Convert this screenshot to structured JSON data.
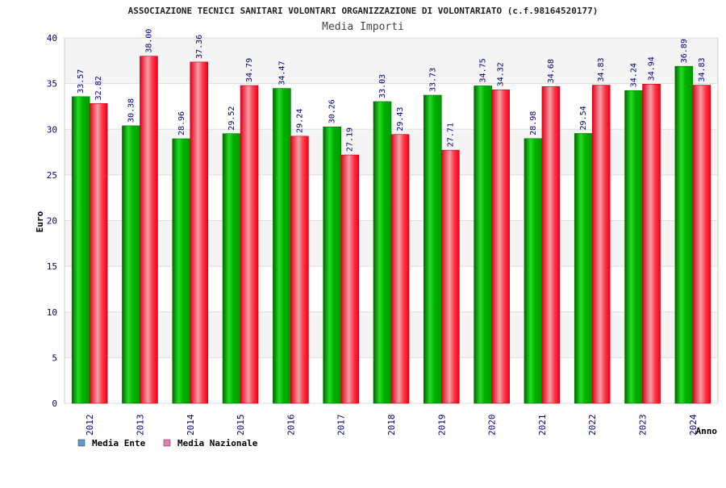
{
  "chart_data": {
    "type": "bar",
    "title": "ASSOCIAZIONE TECNICI SANITARI VOLONTARI ORGANIZZAZIONE DI VOLONTARIATO (c.f.98164520177)",
    "subtitle": "Media Importi",
    "xlabel": "Anno",
    "ylabel": "Euro",
    "ylim": [
      0,
      40
    ],
    "yticks": [
      "0",
      "5",
      "10",
      "15",
      "20",
      "25",
      "30",
      "35",
      "40"
    ],
    "grid": true,
    "legend_position": "bottom-left",
    "categories": [
      "2012",
      "2013",
      "2014",
      "2015",
      "2016",
      "2017",
      "2018",
      "2019",
      "2020",
      "2021",
      "2022",
      "2023",
      "2024"
    ],
    "series": [
      {
        "name": "Media Ente",
        "legend_color": "#5b9bd5",
        "bar_color": "#00b000",
        "values": [
          33.57,
          30.38,
          28.96,
          29.52,
          34.47,
          30.26,
          33.03,
          33.73,
          34.75,
          28.98,
          29.54,
          34.24,
          36.89
        ],
        "labels": [
          "33.57",
          "30.38",
          "28.96",
          "29.52",
          "34.47",
          "30.26",
          "33.03",
          "33.73",
          "34.75",
          "28.98",
          "29.54",
          "34.24",
          "36.89"
        ]
      },
      {
        "name": "Media Nazionale",
        "legend_color": "#e07fb0",
        "bar_color": "#ff1a2e",
        "values": [
          32.82,
          38.0,
          37.36,
          34.79,
          29.24,
          27.19,
          29.43,
          27.71,
          34.32,
          34.68,
          34.83,
          34.94,
          34.83
        ],
        "labels": [
          "32.82",
          "38.00",
          "37.36",
          "34.79",
          "29.24",
          "27.19",
          "29.43",
          "27.71",
          "34.32",
          "34.68",
          "34.83",
          "34.94",
          "34.83"
        ]
      }
    ]
  }
}
